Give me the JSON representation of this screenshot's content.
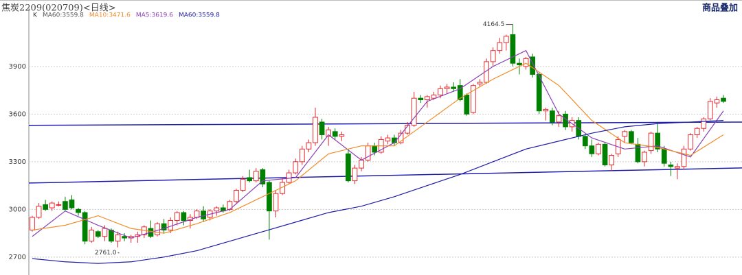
{
  "chart_data": {
    "type": "candlestick",
    "title": "焦炭2209(020709)<日线>",
    "corner_label": "商品叠加",
    "legend_prefix": "K",
    "legend": [
      {
        "label": "MA60:3559.8",
        "color": "#555555"
      },
      {
        "label": "MA10:3471.6",
        "color": "#f08c28"
      },
      {
        "label": "MA5:3619.6",
        "color": "#8a3fb5"
      },
      {
        "label": "MA60:3559.8",
        "color": "#1c1ca8"
      }
    ],
    "up_color": "#e8262a",
    "down_color": "#008000",
    "ylim": [
      2600,
      4275
    ],
    "yticks": [
      2700,
      3000,
      3300,
      3600,
      3900
    ],
    "grid": true,
    "open": [
      2870,
      2950,
      3030,
      3010,
      3030,
      3050,
      3060,
      3000,
      2980,
      2800,
      2860,
      2830,
      2870,
      2800,
      2830,
      2820,
      2830,
      2840,
      2880,
      2840,
      2910,
      2870,
      2930,
      2980,
      2930,
      2950,
      2990,
      2950,
      2990,
      3010,
      3000,
      3050,
      3120,
      3200,
      3180,
      3250,
      3170,
      2990,
      3100,
      3170,
      3230,
      3300,
      3380,
      3420,
      3550,
      3460,
      3490,
      3460,
      3350,
      3180,
      3260,
      3310,
      3400,
      3360,
      3430,
      3450,
      3420,
      3480,
      3530,
      3700,
      3690,
      3700,
      3720,
      3760,
      3770,
      3780,
      3720,
      3610,
      3790,
      3800,
      3930,
      4000,
      4050,
      4100,
      3920,
      3900,
      3960,
      3850,
      3620,
      3620,
      3550,
      3600,
      3520,
      3560,
      3460,
      3400,
      3350,
      3410,
      3280,
      3350,
      3460,
      3490,
      3410,
      3300,
      3370,
      3480,
      3380,
      3280,
      3260,
      3270,
      3380,
      3470,
      3510,
      3570,
      3670,
      3700
    ],
    "high": [
      2960,
      3040,
      3060,
      3050,
      3050,
      3080,
      3090,
      3010,
      2990,
      2890,
      2870,
      2900,
      2880,
      2860,
      2850,
      2840,
      2860,
      2900,
      2930,
      2920,
      2940,
      2950,
      2990,
      2990,
      2970,
      3000,
      3020,
      3000,
      3020,
      3030,
      3060,
      3130,
      3210,
      3250,
      3260,
      3260,
      3180,
      3120,
      3200,
      3250,
      3320,
      3400,
      3440,
      3640,
      3570,
      3520,
      3510,
      3490,
      3380,
      3280,
      3330,
      3420,
      3420,
      3460,
      3470,
      3470,
      3500,
      3550,
      3740,
      3720,
      3720,
      3740,
      3780,
      3790,
      3800,
      3820,
      3730,
      3790,
      3820,
      3950,
      4020,
      4080,
      4100,
      4164.5,
      3950,
      3960,
      3980,
      3860,
      3640,
      3640,
      3620,
      3620,
      3580,
      3580,
      3470,
      3440,
      3420,
      3420,
      3350,
      3460,
      3500,
      3500,
      3450,
      3370,
      3490,
      3540,
      3400,
      3300,
      3290,
      3400,
      3480,
      3520,
      3580,
      3700,
      3710,
      3720
    ],
    "low": [
      2860,
      2940,
      2990,
      2990,
      3020,
      2990,
      3000,
      2960,
      2780,
      2790,
      2820,
      2800,
      2790,
      2761,
      2800,
      2790,
      2790,
      2820,
      2820,
      2830,
      2850,
      2850,
      2900,
      2900,
      2880,
      2940,
      2920,
      2930,
      2960,
      2980,
      2990,
      3040,
      3110,
      3170,
      3170,
      3140,
      2810,
      2950,
      3090,
      3160,
      3220,
      3280,
      3360,
      3400,
      3440,
      3400,
      3440,
      3430,
      3170,
      3160,
      3240,
      3300,
      3340,
      3350,
      3410,
      3400,
      3410,
      3470,
      3520,
      3670,
      3640,
      3690,
      3700,
      3730,
      3740,
      3680,
      3590,
      3600,
      3770,
      3790,
      3900,
      3980,
      4000,
      3900,
      3850,
      3880,
      3830,
      3600,
      3560,
      3530,
      3520,
      3500,
      3490,
      3440,
      3380,
      3330,
      3340,
      3270,
      3240,
      3330,
      3420,
      3410,
      3290,
      3270,
      3350,
      3360,
      3270,
      3210,
      3190,
      3250,
      3370,
      3450,
      3490,
      3560,
      3640,
      3670
    ],
    "close": [
      2950,
      3020,
      3000,
      3040,
      3030,
      3000,
      3010,
      2980,
      2800,
      2870,
      2830,
      2880,
      2800,
      2840,
      2820,
      2830,
      2840,
      2890,
      2830,
      2910,
      2870,
      2930,
      2980,
      2930,
      2950,
      2990,
      2940,
      2990,
      3010,
      2990,
      3050,
      3120,
      3190,
      3180,
      3240,
      3160,
      2990,
      3100,
      3170,
      3230,
      3300,
      3380,
      3420,
      3580,
      3470,
      3500,
      3460,
      3470,
      3180,
      3260,
      3310,
      3400,
      3360,
      3440,
      3450,
      3420,
      3480,
      3530,
      3700,
      3690,
      3710,
      3720,
      3760,
      3770,
      3760,
      3690,
      3600,
      3780,
      3800,
      3930,
      4000,
      4050,
      4090,
      3920,
      3910,
      3950,
      3850,
      3620,
      3630,
      3550,
      3590,
      3520,
      3560,
      3460,
      3400,
      3350,
      3410,
      3280,
      3340,
      3440,
      3490,
      3420,
      3300,
      3360,
      3480,
      3380,
      3290,
      3270,
      3270,
      3380,
      3470,
      3510,
      3570,
      3680,
      3690,
      3680
    ],
    "ma_lines": [
      {
        "name": "MA5",
        "color": "#8a3fb5",
        "x": [
          0,
          5,
          10,
          15,
          20,
          25,
          30,
          35,
          40,
          45,
          50,
          55,
          60,
          65,
          70,
          75,
          80,
          85,
          90,
          95,
          100,
          105
        ],
        "values": [
          2830,
          2990,
          2900,
          2820,
          2880,
          2950,
          3000,
          3180,
          3200,
          3470,
          3310,
          3420,
          3680,
          3760,
          3900,
          4000,
          3600,
          3450,
          3380,
          3400,
          3330,
          3620
        ]
      },
      {
        "name": "MA10",
        "color": "#f08c28",
        "x": [
          0,
          5,
          10,
          15,
          20,
          25,
          30,
          35,
          40,
          45,
          50,
          55,
          60,
          65,
          70,
          75,
          80,
          85,
          90,
          95,
          100,
          105
        ],
        "values": [
          2870,
          2900,
          2960,
          2880,
          2850,
          2910,
          2980,
          3080,
          3180,
          3350,
          3400,
          3400,
          3550,
          3700,
          3820,
          3920,
          3780,
          3560,
          3420,
          3390,
          3340,
          3470
        ]
      },
      {
        "name": "MA60",
        "color": "#1c1ca8",
        "x": [
          0,
          5,
          10,
          15,
          20,
          25,
          30,
          35,
          40,
          45,
          50,
          55,
          60,
          65,
          70,
          75,
          80,
          85,
          90,
          95,
          100,
          105
        ],
        "values": [
          2690,
          2670,
          2660,
          2670,
          2700,
          2740,
          2800,
          2860,
          2920,
          2980,
          3020,
          3080,
          3150,
          3220,
          3300,
          3380,
          3430,
          3480,
          3520,
          3540,
          3550,
          3560
        ]
      }
    ],
    "trend_lines": [
      {
        "color": "#1c1ca8",
        "start": 3529,
        "end": 3550
      },
      {
        "color": "#1c1ca8",
        "start": 3166,
        "end": 3261
      }
    ],
    "annotations": [
      {
        "label": "4164.5",
        "value": 4164.5
      },
      {
        "label": "2761.0",
        "value": 2761
      }
    ]
  }
}
